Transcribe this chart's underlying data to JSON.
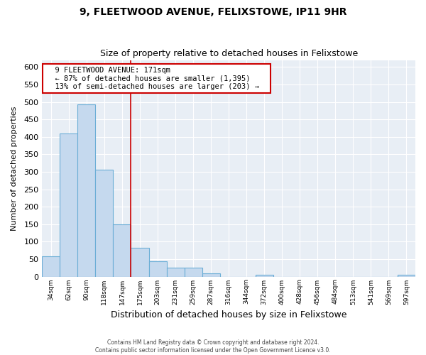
{
  "title": "9, FLEETWOOD AVENUE, FELIXSTOWE, IP11 9HR",
  "subtitle": "Size of property relative to detached houses in Felixstowe",
  "xlabel": "Distribution of detached houses by size in Felixstowe",
  "ylabel": "Number of detached properties",
  "footer_line1": "Contains HM Land Registry data © Crown copyright and database right 2024.",
  "footer_line2": "Contains public sector information licensed under the Open Government Licence v3.0.",
  "bin_labels": [
    "34sqm",
    "62sqm",
    "90sqm",
    "118sqm",
    "147sqm",
    "175sqm",
    "203sqm",
    "231sqm",
    "259sqm",
    "287sqm",
    "316sqm",
    "344sqm",
    "372sqm",
    "400sqm",
    "428sqm",
    "456sqm",
    "484sqm",
    "513sqm",
    "541sqm",
    "569sqm",
    "597sqm"
  ],
  "bar_heights": [
    57,
    410,
    493,
    307,
    150,
    82,
    44,
    25,
    25,
    10,
    0,
    0,
    5,
    0,
    0,
    0,
    0,
    0,
    0,
    0,
    5
  ],
  "bar_color": "#c5d9ee",
  "bar_edge_color": "#6baed6",
  "vline_x": 5,
  "vline_color": "#cc0000",
  "annotation_title": "9 FLEETWOOD AVENUE: 171sqm",
  "annotation_line1": "← 87% of detached houses are smaller (1,395)",
  "annotation_line2": "13% of semi-detached houses are larger (203) →",
  "annotation_box_color": "#ffffff",
  "annotation_box_edge": "#cc0000",
  "ylim": [
    0,
    620
  ],
  "yticks": [
    0,
    50,
    100,
    150,
    200,
    250,
    300,
    350,
    400,
    450,
    500,
    550,
    600
  ],
  "n_bars": 21,
  "bg_color": "#e8eef5"
}
